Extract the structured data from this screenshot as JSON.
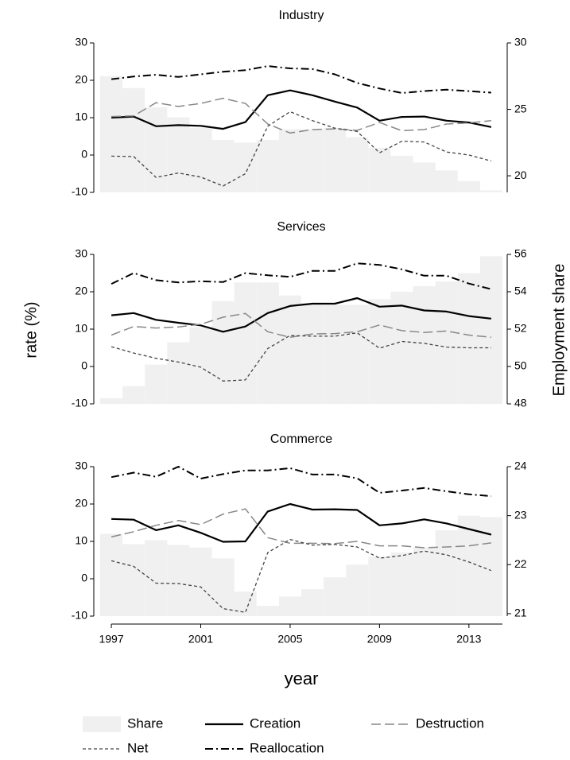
{
  "axes": {
    "x_label": "year",
    "y_label": "rate (%)",
    "y2_label": "Employment share"
  },
  "chart_data": [
    {
      "type": "line",
      "title": "Industry",
      "x": [
        1997,
        1998,
        1999,
        2000,
        2001,
        2002,
        2003,
        2004,
        2005,
        2006,
        2007,
        2008,
        2009,
        2010,
        2011,
        2012,
        2013,
        2014
      ],
      "xlim": [
        1996.5,
        2014.5
      ],
      "ylim": [
        -10,
        30
      ],
      "yticks": [
        -10,
        0,
        10,
        20,
        30
      ],
      "y2lim": [
        18.75,
        30
      ],
      "y2ticks": [
        20,
        25,
        30
      ],
      "series": [
        {
          "name": "Share",
          "type": "bar",
          "axis": "y2",
          "color": "#f0f0f0",
          "values": [
            27.5,
            26.6,
            25.15,
            24.4,
            23.6,
            22.7,
            22.5,
            22.7,
            23.5,
            23.5,
            23.6,
            22.9,
            22.1,
            21.5,
            21.0,
            20.4,
            19.6,
            18.9
          ]
        },
        {
          "name": "Creation",
          "type": "line",
          "style": "solid",
          "color": "#000000",
          "values": [
            10,
            10.3,
            7.7,
            8,
            7.8,
            7,
            8.8,
            16,
            17.3,
            16,
            14.3,
            12.7,
            9.2,
            10.2,
            10.3,
            9.2,
            8.7,
            7.5
          ]
        },
        {
          "name": "Destruction",
          "type": "line",
          "style": "longdash",
          "color": "#888888",
          "values": [
            10.3,
            10.5,
            14,
            13,
            13.8,
            15.2,
            13.8,
            8.3,
            5.9,
            6.8,
            7,
            6.6,
            8.7,
            6.5,
            6.8,
            8.3,
            8.6,
            9.2
          ]
        },
        {
          "name": "Net",
          "type": "line",
          "style": "shortdash",
          "color": "#444444",
          "values": [
            -0.3,
            -0.4,
            -6,
            -4.8,
            -5.9,
            -8.3,
            -5,
            7.7,
            11.6,
            9.2,
            7.2,
            6.3,
            0.6,
            3.7,
            3.5,
            0.8,
            0,
            -1.6
          ]
        },
        {
          "name": "Reallocation",
          "type": "line",
          "style": "dashdot",
          "color": "#000000",
          "values": [
            20.3,
            21,
            21.5,
            20.9,
            21.6,
            22.3,
            22.7,
            23.8,
            23.2,
            23,
            21.6,
            19.3,
            17.8,
            16.6,
            17.1,
            17.5,
            17.1,
            16.7
          ]
        }
      ]
    },
    {
      "type": "line",
      "title": "Services",
      "x": [
        1997,
        1998,
        1999,
        2000,
        2001,
        2002,
        2003,
        2004,
        2005,
        2006,
        2007,
        2008,
        2009,
        2010,
        2011,
        2012,
        2013,
        2014
      ],
      "xlim": [
        1996.5,
        2014.5
      ],
      "ylim": [
        -10,
        30
      ],
      "yticks": [
        -10,
        0,
        10,
        20,
        30
      ],
      "y2lim": [
        48,
        56
      ],
      "y2ticks": [
        48,
        50,
        52,
        54,
        56
      ],
      "series": [
        {
          "name": "Share",
          "type": "bar",
          "axis": "y2",
          "color": "#f0f0f0",
          "values": [
            48.3,
            48.95,
            50.1,
            51.3,
            52.1,
            53.5,
            54.5,
            54.5,
            53.8,
            53.4,
            53.3,
            53.3,
            53.6,
            54.0,
            54.3,
            54.55,
            55.0,
            55.9
          ]
        },
        {
          "name": "Creation",
          "type": "line",
          "style": "solid",
          "color": "#000000",
          "values": [
            13.7,
            14.3,
            12.5,
            11.7,
            11,
            9.3,
            10.7,
            14.3,
            16.2,
            16.8,
            16.8,
            18.3,
            16,
            16.3,
            15,
            14.7,
            13.5,
            12.8
          ]
        },
        {
          "name": "Destruction",
          "type": "line",
          "style": "longdash",
          "color": "#888888",
          "values": [
            8.4,
            10.7,
            10.3,
            10.6,
            11.3,
            13.2,
            14.2,
            9.3,
            7.8,
            8.7,
            8.8,
            9.3,
            11.1,
            9.6,
            9.1,
            9.5,
            8.4,
            7.8
          ]
        },
        {
          "name": "Net",
          "type": "line",
          "style": "shortdash",
          "color": "#444444",
          "values": [
            5.3,
            3.6,
            2.2,
            1.2,
            -0.2,
            -3.9,
            -3.6,
            4.8,
            8.3,
            8.1,
            8.1,
            9,
            4.9,
            6.7,
            6.2,
            5.2,
            5,
            5
          ]
        },
        {
          "name": "Reallocation",
          "type": "line",
          "style": "dashdot",
          "color": "#000000",
          "values": [
            22.1,
            25,
            23.1,
            22.5,
            22.8,
            22.6,
            25,
            24.4,
            24,
            25.6,
            25.6,
            27.6,
            27.2,
            26,
            24.3,
            24.3,
            22.2,
            20.7
          ]
        }
      ]
    },
    {
      "type": "line",
      "title": "Commerce",
      "x": [
        1997,
        1998,
        1999,
        2000,
        2001,
        2002,
        2003,
        2004,
        2005,
        2006,
        2007,
        2008,
        2009,
        2010,
        2011,
        2012,
        2013,
        2014
      ],
      "xlim": [
        1996.5,
        2014.5
      ],
      "xticks": [
        1997,
        2001,
        2005,
        2009,
        2013
      ],
      "ylim": [
        -10,
        30
      ],
      "yticks": [
        -10,
        0,
        10,
        20,
        30
      ],
      "y2lim": [
        20.95,
        24
      ],
      "y2ticks": [
        21,
        22,
        23,
        24
      ],
      "series": [
        {
          "name": "Share",
          "type": "bar",
          "axis": "y2",
          "color": "#f0f0f0",
          "values": [
            22.63,
            22.42,
            22.5,
            22.4,
            22.35,
            22.13,
            21.45,
            21.16,
            21.35,
            21.5,
            21.74,
            22.0,
            22.16,
            22.25,
            22.35,
            22.7,
            23.0,
            22.97
          ]
        },
        {
          "name": "Creation",
          "type": "line",
          "style": "solid",
          "color": "#000000",
          "values": [
            16,
            15.8,
            13,
            14.3,
            12.3,
            9.9,
            10,
            18,
            20,
            18.5,
            18.6,
            18.4,
            14.3,
            14.8,
            15.9,
            14.8,
            13.3,
            11.8
          ]
        },
        {
          "name": "Destruction",
          "type": "line",
          "style": "longdash",
          "color": "#888888",
          "values": [
            11.2,
            12.6,
            14.3,
            15.6,
            14.5,
            17.3,
            18.7,
            11,
            9.5,
            9.5,
            9.4,
            10,
            8.8,
            8.8,
            8.3,
            8.5,
            8.8,
            9.6
          ]
        },
        {
          "name": "Net",
          "type": "line",
          "style": "shortdash",
          "color": "#444444",
          "values": [
            4.8,
            3.3,
            -1.2,
            -1.3,
            -2.2,
            -8,
            -9,
            7,
            10.5,
            9,
            9.2,
            8.5,
            5.5,
            6.2,
            7.4,
            6.4,
            4.5,
            2.2
          ]
        },
        {
          "name": "Reallocation",
          "type": "line",
          "style": "dashdot",
          "color": "#000000",
          "values": [
            27.2,
            28.4,
            27.3,
            30,
            26.8,
            28,
            29,
            29,
            29.6,
            27.9,
            27.9,
            26.9,
            23,
            23.6,
            24.3,
            23.4,
            22.6,
            22.1
          ]
        }
      ]
    }
  ]
}
